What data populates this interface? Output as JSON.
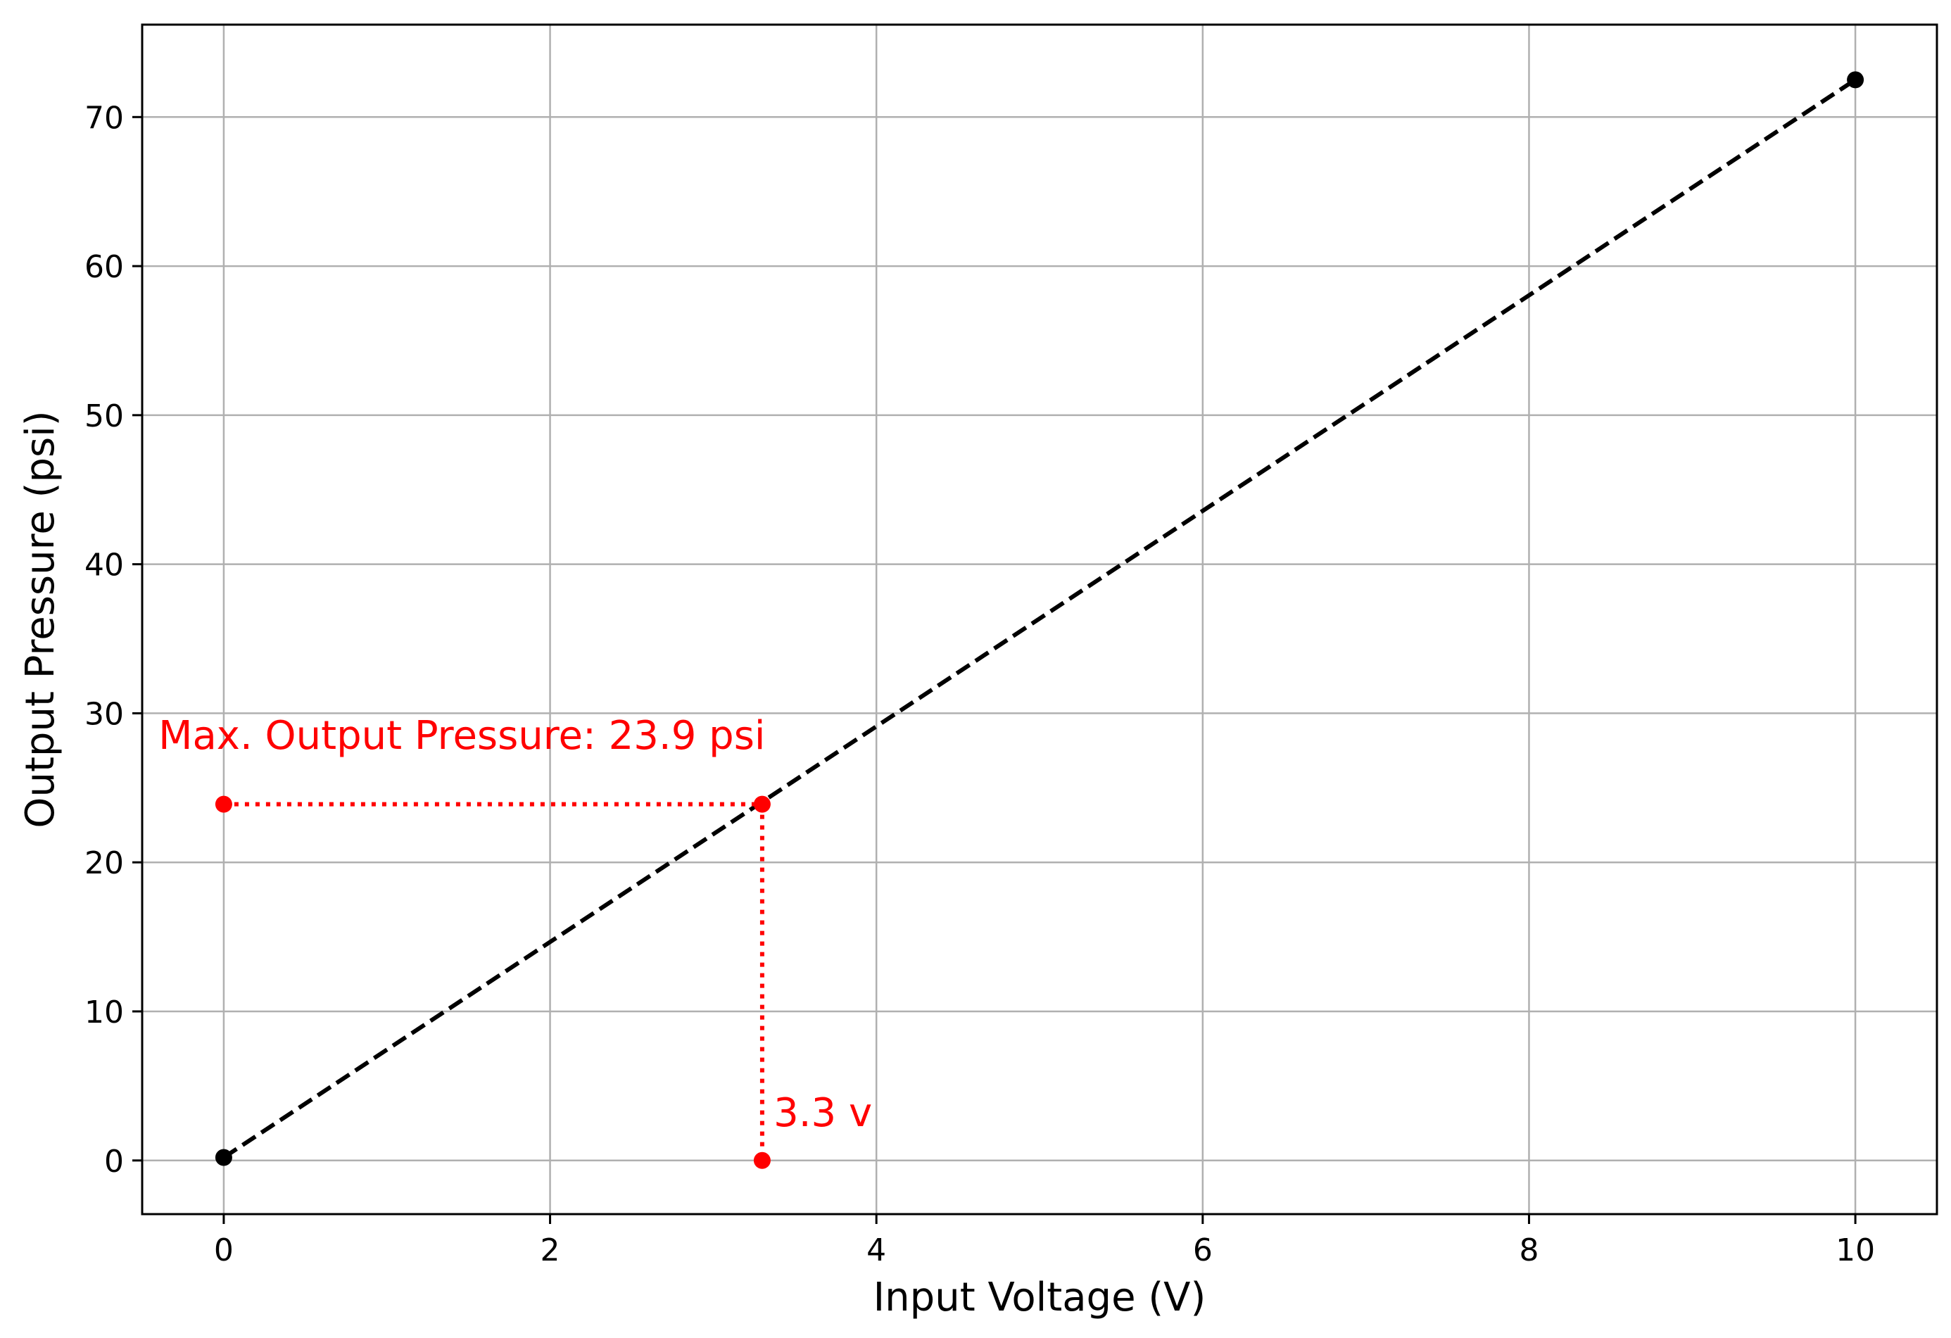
{
  "chart_data": {
    "type": "line",
    "title": "",
    "xlabel": "Input Voltage (V)",
    "ylabel": "Output Pressure (psi)",
    "xlim": [
      -0.5,
      10.5
    ],
    "ylim": [
      -3.6,
      76.2
    ],
    "x_ticks": [
      0,
      2,
      4,
      6,
      8,
      10
    ],
    "y_ticks": [
      0,
      10,
      20,
      30,
      40,
      50,
      60,
      70
    ],
    "grid": true,
    "legend": "none",
    "series": [
      {
        "style": "dashed",
        "color": "#000000",
        "x": [
          0,
          10
        ],
        "y": [
          0.2,
          72.5
        ]
      }
    ],
    "annotations": {
      "color": "#ff0000",
      "points": [
        {
          "x": 0,
          "y": 23.9
        },
        {
          "x": 3.3,
          "y": 23.9
        },
        {
          "x": 3.3,
          "y": 0
        }
      ],
      "dotted_lines": [
        {
          "x1": 0,
          "y1": 23.9,
          "x2": 3.3,
          "y2": 23.9
        },
        {
          "x1": 3.3,
          "y1": 23.9,
          "x2": 3.3,
          "y2": 0
        }
      ],
      "labels": [
        {
          "text": "Max. Output Pressure: 23.9 psi",
          "x": -0.4,
          "y": 27.6
        },
        {
          "text": "3.3 v",
          "x": 3.37,
          "y": 2.3
        }
      ]
    }
  }
}
